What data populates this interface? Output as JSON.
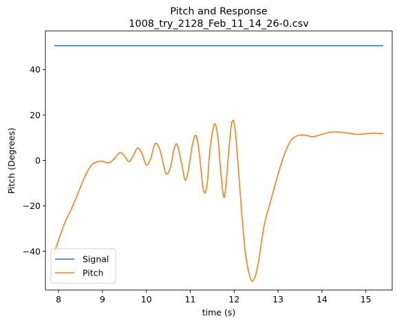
{
  "chart_data": {
    "type": "line",
    "title": "Pitch and Response",
    "subtitle": "1008_try_2128_Feb_11_14_26-0.csv",
    "xlabel": "time (s)",
    "ylabel": "Pitch (Degrees)",
    "xlim": [
      7.7,
      15.6
    ],
    "ylim": [
      -57,
      57
    ],
    "xticks": [
      8,
      9,
      10,
      11,
      12,
      13,
      14,
      15
    ],
    "yticks": [
      -40,
      -20,
      0,
      20,
      40
    ],
    "grid": false,
    "legend": {
      "placement": "lower-left"
    },
    "series": [
      {
        "name": "Signal",
        "color": "#1f77b4",
        "x": [
          7.9,
          15.4
        ],
        "y": [
          50.5,
          50.5
        ]
      },
      {
        "name": "Pitch",
        "color": "#ff7f0e",
        "x": [
          7.9,
          8.0,
          8.15,
          8.3,
          8.45,
          8.6,
          8.75,
          8.9,
          9.0,
          9.1,
          9.2,
          9.3,
          9.4,
          9.5,
          9.6,
          9.7,
          9.8,
          9.9,
          10.0,
          10.1,
          10.2,
          10.3,
          10.38,
          10.45,
          10.55,
          10.63,
          10.7,
          10.8,
          10.88,
          10.95,
          11.05,
          11.13,
          11.2,
          11.3,
          11.38,
          11.45,
          11.55,
          11.63,
          11.7,
          11.78,
          11.88,
          11.95,
          12.02,
          12.1,
          12.18,
          12.25,
          12.33,
          12.4,
          12.48,
          12.55,
          12.62,
          12.7,
          12.8,
          12.9,
          13.0,
          13.15,
          13.3,
          13.45,
          13.55,
          13.65,
          13.8,
          14.0,
          14.2,
          14.4,
          14.6,
          14.8,
          15.0,
          15.2,
          15.4
        ],
        "y": [
          -41,
          -35,
          -27,
          -21,
          -14,
          -7,
          -2,
          -0.5,
          -0.3,
          -1,
          -0.5,
          1.5,
          3.5,
          2,
          -0.5,
          2,
          5.5,
          3,
          -2,
          1,
          7.5,
          5,
          -1,
          -6,
          -3,
          5,
          7,
          -1,
          -8.5,
          -5,
          7,
          11,
          4,
          -13,
          -11,
          5,
          16,
          10,
          -6,
          -16,
          5,
          17,
          14,
          -5,
          -25,
          -40,
          -49,
          -53,
          -51,
          -45,
          -36,
          -27,
          -20,
          -13,
          -6,
          3,
          9,
          11,
          11.2,
          11,
          10.5,
          11.5,
          12.5,
          12.5,
          12,
          11.5,
          11.8,
          12,
          11.8
        ]
      }
    ]
  }
}
